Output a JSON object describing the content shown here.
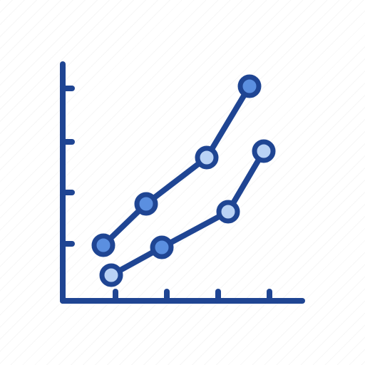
{
  "icon": {
    "name": "line-chart-icon",
    "colors": {
      "stroke": "#1f4593",
      "marker_fill_dark": "#5b8fe0",
      "marker_fill_light": "#b9d2f5",
      "background": "#ffffff"
    }
  }
}
